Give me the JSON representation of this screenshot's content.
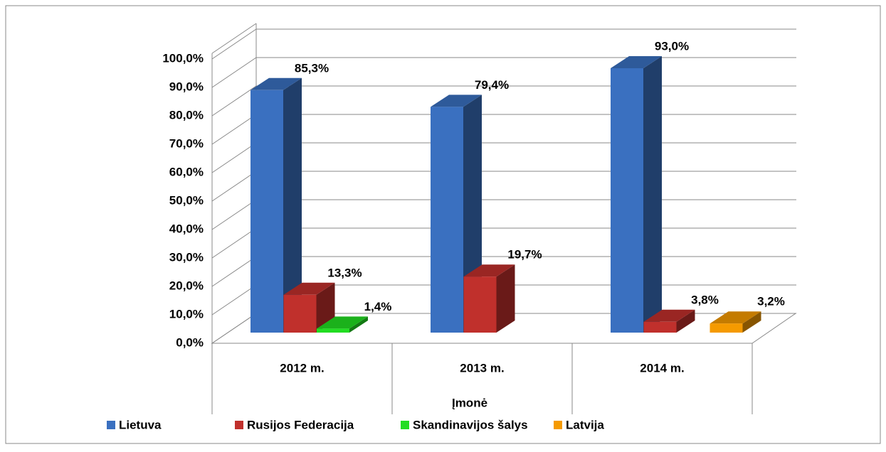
{
  "chart_data": {
    "type": "bar",
    "x_label": "Įmonė",
    "categories": [
      "2012 m.",
      "2013 m.",
      "2014 m."
    ],
    "series": [
      {
        "name": "Lietuva",
        "color": "#3a70c0",
        "values": [
          85.3,
          79.4,
          93.0
        ],
        "value_labels": [
          "85,3%",
          "79,4%",
          "93,0%"
        ]
      },
      {
        "name": "Rusijos Federacija",
        "color": "#c0302c",
        "values": [
          13.3,
          19.7,
          3.8
        ],
        "value_labels": [
          "13,3%",
          "19,7%",
          "3,8%"
        ]
      },
      {
        "name": "Skandinavijos šalys",
        "color": "#22dd22",
        "values": [
          1.4,
          null,
          null
        ],
        "value_labels": [
          "1,4%",
          null,
          null
        ]
      },
      {
        "name": "Latvija",
        "color": "#f59a00",
        "values": [
          null,
          null,
          3.2
        ],
        "value_labels": [
          null,
          null,
          "3,2%"
        ]
      }
    ],
    "ylim": [
      0,
      100
    ],
    "yticks": [
      {
        "value": 0,
        "label": "0,0%"
      },
      {
        "value": 10,
        "label": "10,0%"
      },
      {
        "value": 20,
        "label": "20,0%"
      },
      {
        "value": 30,
        "label": "30,0%"
      },
      {
        "value": 40,
        "label": "40,0%"
      },
      {
        "value": 50,
        "label": "50,0%"
      },
      {
        "value": 60,
        "label": "60,0%"
      },
      {
        "value": 70,
        "label": "70,0%"
      },
      {
        "value": 80,
        "label": "80,0%"
      },
      {
        "value": 90,
        "label": "90,0%"
      },
      {
        "value": 100,
        "label": "100,0%"
      }
    ],
    "grid": true,
    "legend": "bottom"
  }
}
